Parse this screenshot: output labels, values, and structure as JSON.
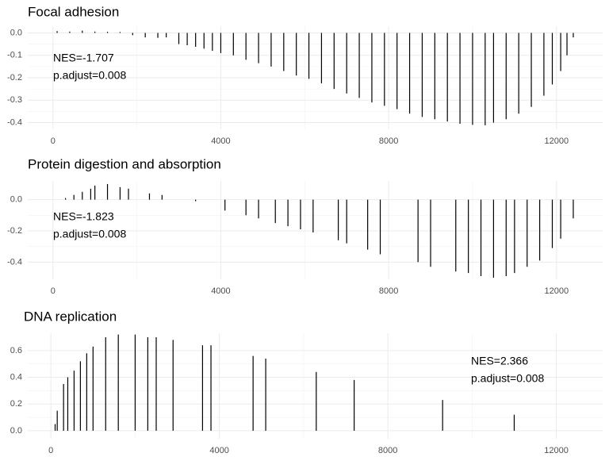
{
  "chart_data": [
    {
      "type": "spike",
      "title": "Focal adhesion",
      "annotations": [
        "NES=-1.707",
        "p.adjust=0.008"
      ],
      "color": "#000000",
      "grid": true,
      "xlim": [
        -600,
        13100
      ],
      "ylim": [
        -0.43,
        0.03
      ],
      "xticks": [
        0,
        4000,
        8000,
        12000
      ],
      "yticks": [
        {
          "value": 0,
          "label": "0.0"
        },
        -0.1,
        -0.2,
        -0.3,
        -0.4
      ],
      "x": [
        100,
        400,
        700,
        1000,
        1300,
        1600,
        1900,
        2200,
        2500,
        2700,
        3000,
        3200,
        3400,
        3600,
        3800,
        4000,
        4300,
        4600,
        4900,
        5200,
        5500,
        5800,
        6100,
        6400,
        6700,
        7000,
        7300,
        7600,
        7900,
        8200,
        8500,
        8800,
        9100,
        9400,
        9700,
        10000,
        10300,
        10500,
        10800,
        11100,
        11400,
        11700,
        11900,
        12100,
        12250,
        12400
      ],
      "values": [
        0.008,
        0.006,
        0.01,
        0.006,
        0.005,
        0.004,
        -0.01,
        -0.02,
        -0.022,
        -0.02,
        -0.05,
        -0.055,
        -0.062,
        -0.07,
        -0.08,
        -0.09,
        -0.1,
        -0.12,
        -0.135,
        -0.15,
        -0.17,
        -0.19,
        -0.205,
        -0.225,
        -0.25,
        -0.27,
        -0.29,
        -0.31,
        -0.325,
        -0.34,
        -0.36,
        -0.375,
        -0.385,
        -0.395,
        -0.405,
        -0.41,
        -0.412,
        -0.4,
        -0.385,
        -0.36,
        -0.33,
        -0.28,
        -0.23,
        -0.17,
        -0.1,
        -0.02
      ]
    },
    {
      "type": "spike",
      "title": "Protein digestion and absorption",
      "annotations": [
        "NES=-1.823",
        "p.adjust=0.008"
      ],
      "color": "#000000",
      "grid": true,
      "xlim": [
        -600,
        13100
      ],
      "ylim": [
        -0.51,
        0.12
      ],
      "xticks": [
        0,
        4000,
        8000,
        12000
      ],
      "yticks": [
        {
          "value": 0,
          "label": "0.0"
        },
        -0.2,
        -0.4
      ],
      "x": [
        300,
        500,
        700,
        900,
        1000,
        1300,
        1600,
        1800,
        2300,
        2600,
        3400,
        4100,
        4600,
        4900,
        5300,
        5600,
        5900,
        6200,
        6800,
        7000,
        7500,
        7800,
        8700,
        9000,
        9600,
        9900,
        10200,
        10500,
        10800,
        11000,
        11300,
        11600,
        11900,
        12100,
        12400
      ],
      "values": [
        0.01,
        0.03,
        0.05,
        0.07,
        0.09,
        0.1,
        0.08,
        0.07,
        0.04,
        0.03,
        -0.01,
        -0.07,
        -0.1,
        -0.12,
        -0.15,
        -0.17,
        -0.19,
        -0.21,
        -0.26,
        -0.28,
        -0.32,
        -0.35,
        -0.4,
        -0.43,
        -0.46,
        -0.47,
        -0.49,
        -0.5,
        -0.49,
        -0.47,
        -0.43,
        -0.39,
        -0.31,
        -0.25,
        -0.12
      ]
    },
    {
      "type": "spike",
      "title": "DNA replication",
      "annotations": [
        "NES=2.366",
        "p.adjust=0.008"
      ],
      "color": "#000000",
      "grid": true,
      "xlim": [
        -550,
        13100
      ],
      "ylim": [
        -0.06,
        0.73
      ],
      "xticks": [
        0,
        4000,
        8000,
        12000
      ],
      "yticks": [
        {
          "value": 0,
          "label": "0.0"
        },
        0.2,
        0.4,
        0.6
      ],
      "x": [
        100,
        150,
        300,
        400,
        550,
        700,
        850,
        1000,
        1300,
        1600,
        2000,
        2300,
        2500,
        2900,
        3600,
        3800,
        4800,
        5100,
        6300,
        7200,
        9300,
        11000
      ],
      "values": [
        0.05,
        0.15,
        0.35,
        0.4,
        0.45,
        0.52,
        0.58,
        0.63,
        0.7,
        0.72,
        0.72,
        0.7,
        0.7,
        0.68,
        0.64,
        0.64,
        0.56,
        0.54,
        0.44,
        0.38,
        0.23,
        0.12
      ]
    }
  ]
}
